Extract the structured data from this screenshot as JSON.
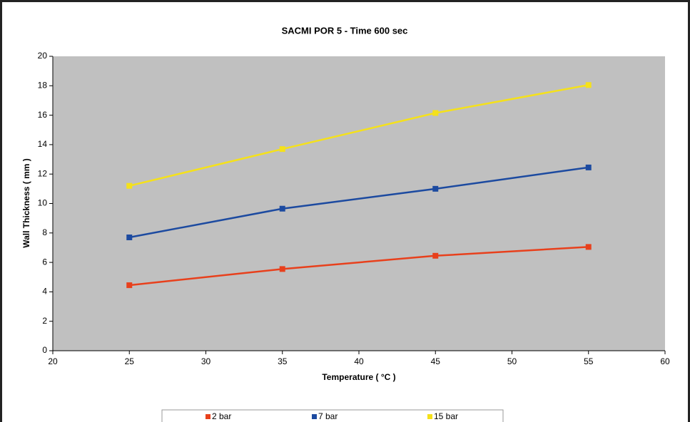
{
  "chart_data": {
    "type": "line",
    "title": "SACMI POR 5 - Time 600 sec",
    "xlabel": "Temperature ( °C )",
    "ylabel": "Wall Thickness ( mm )",
    "x": [
      25,
      35,
      45,
      55
    ],
    "series": [
      {
        "name": "2 bar",
        "color": "#e8401c",
        "values": [
          4.45,
          5.55,
          6.45,
          7.05
        ]
      },
      {
        "name": "7 bar",
        "color": "#1c4aa0",
        "values": [
          7.7,
          9.65,
          11.0,
          12.45
        ]
      },
      {
        "name": "15 bar",
        "color": "#f5e11a",
        "values": [
          11.2,
          13.7,
          16.15,
          18.05
        ]
      }
    ],
    "xlim": [
      20,
      60
    ],
    "xticks": [
      20,
      25,
      30,
      35,
      40,
      45,
      50,
      55,
      60
    ],
    "ylim": [
      0,
      20
    ],
    "yticks": [
      0,
      2,
      4,
      6,
      8,
      10,
      12,
      14,
      16,
      18,
      20
    ],
    "plot_background": "#c0c0c0",
    "legend": "bottom"
  }
}
